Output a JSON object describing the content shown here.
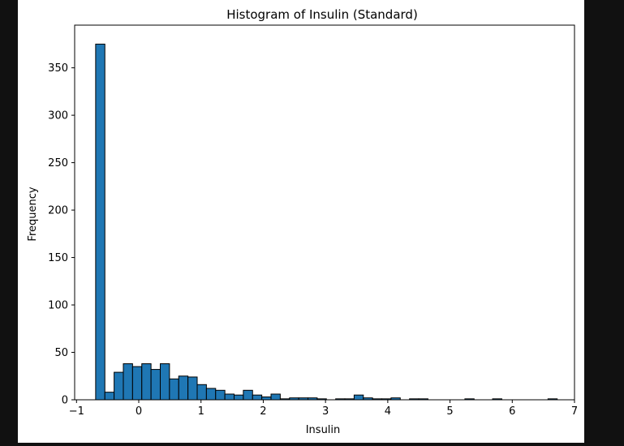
{
  "chart_data": {
    "type": "bar",
    "title": "Histogram of Insulin (Standard)",
    "xlabel": "Insulin",
    "ylabel": "Frequency",
    "xlim": [
      -1.03,
      7.0
    ],
    "ylim": [
      0,
      395
    ],
    "x_ticks": [
      -1,
      0,
      1,
      2,
      3,
      4,
      5,
      6,
      7
    ],
    "y_ticks": [
      0,
      50,
      100,
      150,
      200,
      250,
      300,
      350
    ],
    "bar_color": "#1f77b4",
    "bar_edge_color": "#000000",
    "bin_width": 0.1483,
    "bins_start": [
      -0.6928,
      -0.5445,
      -0.3962,
      -0.2479,
      -0.0996,
      0.0487,
      0.197,
      0.3453,
      0.4936,
      0.6419,
      0.7902,
      0.9385,
      1.0868,
      1.2351,
      1.3834,
      1.5317,
      1.68,
      1.8283,
      1.9766,
      2.1249,
      2.2732,
      2.4215,
      2.5698,
      2.7181,
      2.8664,
      3.0147,
      3.163,
      3.3113,
      3.4596,
      3.6079,
      3.7562,
      3.9045,
      4.0528,
      4.2011,
      4.3494,
      4.4977,
      4.646,
      4.7943,
      4.9426,
      5.0909,
      5.2392,
      5.3875,
      5.5358,
      5.6841,
      5.8324,
      5.9807,
      6.129,
      6.2773,
      6.4256,
      6.5739
    ],
    "values": [
      375,
      8,
      29,
      38,
      35,
      38,
      32,
      38,
      22,
      25,
      24,
      16,
      12,
      10,
      6,
      5,
      10,
      5,
      3,
      6,
      1,
      2,
      2,
      2,
      1,
      0,
      1,
      1,
      5,
      2,
      1,
      1,
      2,
      0,
      1,
      1,
      0,
      0,
      0,
      0,
      1,
      0,
      0,
      1,
      0,
      0,
      0,
      0,
      0,
      1
    ]
  }
}
